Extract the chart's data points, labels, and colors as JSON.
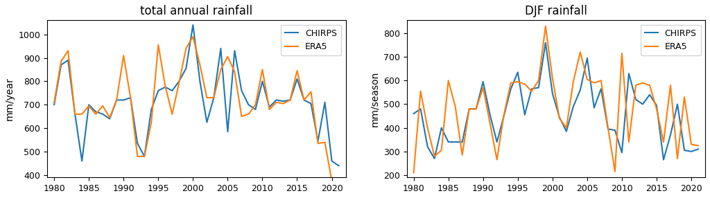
{
  "title_left": "total annual rainfall",
  "title_right": "DJF rainfall",
  "ylabel_left": "mm/year",
  "ylabel_right": "mm/season",
  "color_chirps": "#1f77b4",
  "color_era5": "#ff7f0e",
  "years": [
    1980,
    1981,
    1982,
    1983,
    1984,
    1985,
    1986,
    1987,
    1988,
    1989,
    1990,
    1991,
    1992,
    1993,
    1994,
    1995,
    1996,
    1997,
    1998,
    1999,
    2000,
    2001,
    2002,
    2003,
    2004,
    2005,
    2006,
    2007,
    2008,
    2009,
    2010,
    2011,
    2012,
    2013,
    2014,
    2015,
    2016,
    2017,
    2018,
    2019,
    2020,
    2021
  ],
  "total_chirps": [
    700,
    870,
    890,
    660,
    460,
    700,
    670,
    660,
    640,
    720,
    720,
    730,
    535,
    480,
    680,
    760,
    775,
    760,
    800,
    855,
    1040,
    800,
    625,
    730,
    940,
    585,
    930,
    760,
    700,
    680,
    800,
    690,
    720,
    715,
    720,
    810,
    720,
    705,
    545,
    710,
    460,
    440
  ],
  "total_era5": [
    710,
    885,
    930,
    660,
    660,
    695,
    660,
    695,
    645,
    720,
    910,
    730,
    480,
    480,
    625,
    955,
    780,
    660,
    795,
    940,
    990,
    870,
    730,
    730,
    850,
    905,
    840,
    650,
    660,
    700,
    850,
    680,
    710,
    705,
    720,
    845,
    720,
    755,
    535,
    540,
    375,
    365
  ],
  "djf_chirps": [
    460,
    480,
    320,
    270,
    400,
    340,
    340,
    340,
    480,
    480,
    595,
    455,
    340,
    450,
    565,
    635,
    455,
    565,
    570,
    760,
    545,
    445,
    385,
    490,
    560,
    695,
    485,
    565,
    395,
    390,
    295,
    630,
    520,
    500,
    540,
    495,
    265,
    370,
    500,
    305,
    300,
    310
  ],
  "djf_era5": [
    210,
    555,
    400,
    280,
    305,
    600,
    490,
    285,
    480,
    480,
    570,
    420,
    265,
    455,
    590,
    595,
    585,
    555,
    600,
    830,
    610,
    440,
    400,
    595,
    720,
    605,
    590,
    600,
    400,
    215,
    715,
    340,
    580,
    590,
    580,
    480,
    340,
    580,
    270,
    530,
    330,
    325
  ],
  "xlim_left": [
    1979,
    2022
  ],
  "xlim_right": [
    1979,
    2022
  ],
  "ylim_left": [
    390,
    1060
  ],
  "ylim_right": [
    190,
    855
  ],
  "xticks": [
    1980,
    1985,
    1990,
    1995,
    2000,
    2005,
    2010,
    2015,
    2020
  ],
  "yticks_left": [
    400,
    500,
    600,
    700,
    800,
    900,
    1000
  ],
  "yticks_right": [
    200,
    300,
    400,
    500,
    600,
    700,
    800
  ],
  "linewidth": 1.5,
  "legend_fontsize": 9,
  "title_fontsize": 12,
  "tick_labelsize": 9,
  "ylabel_fontsize": 10
}
